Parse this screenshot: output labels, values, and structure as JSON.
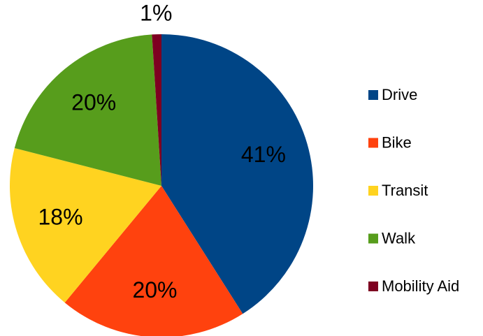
{
  "chart_data": {
    "type": "pie",
    "categories": [
      "Drive",
      "Bike",
      "Transit",
      "Walk",
      "Mobility Aid"
    ],
    "values": [
      41,
      20,
      18,
      20,
      1
    ],
    "value_labels": [
      "41%",
      "20%",
      "18%",
      "20%",
      "1%"
    ],
    "colors": [
      "#004586",
      "#ff420e",
      "#ffd320",
      "#579d1c",
      "#7e0021"
    ],
    "legend": "right"
  }
}
